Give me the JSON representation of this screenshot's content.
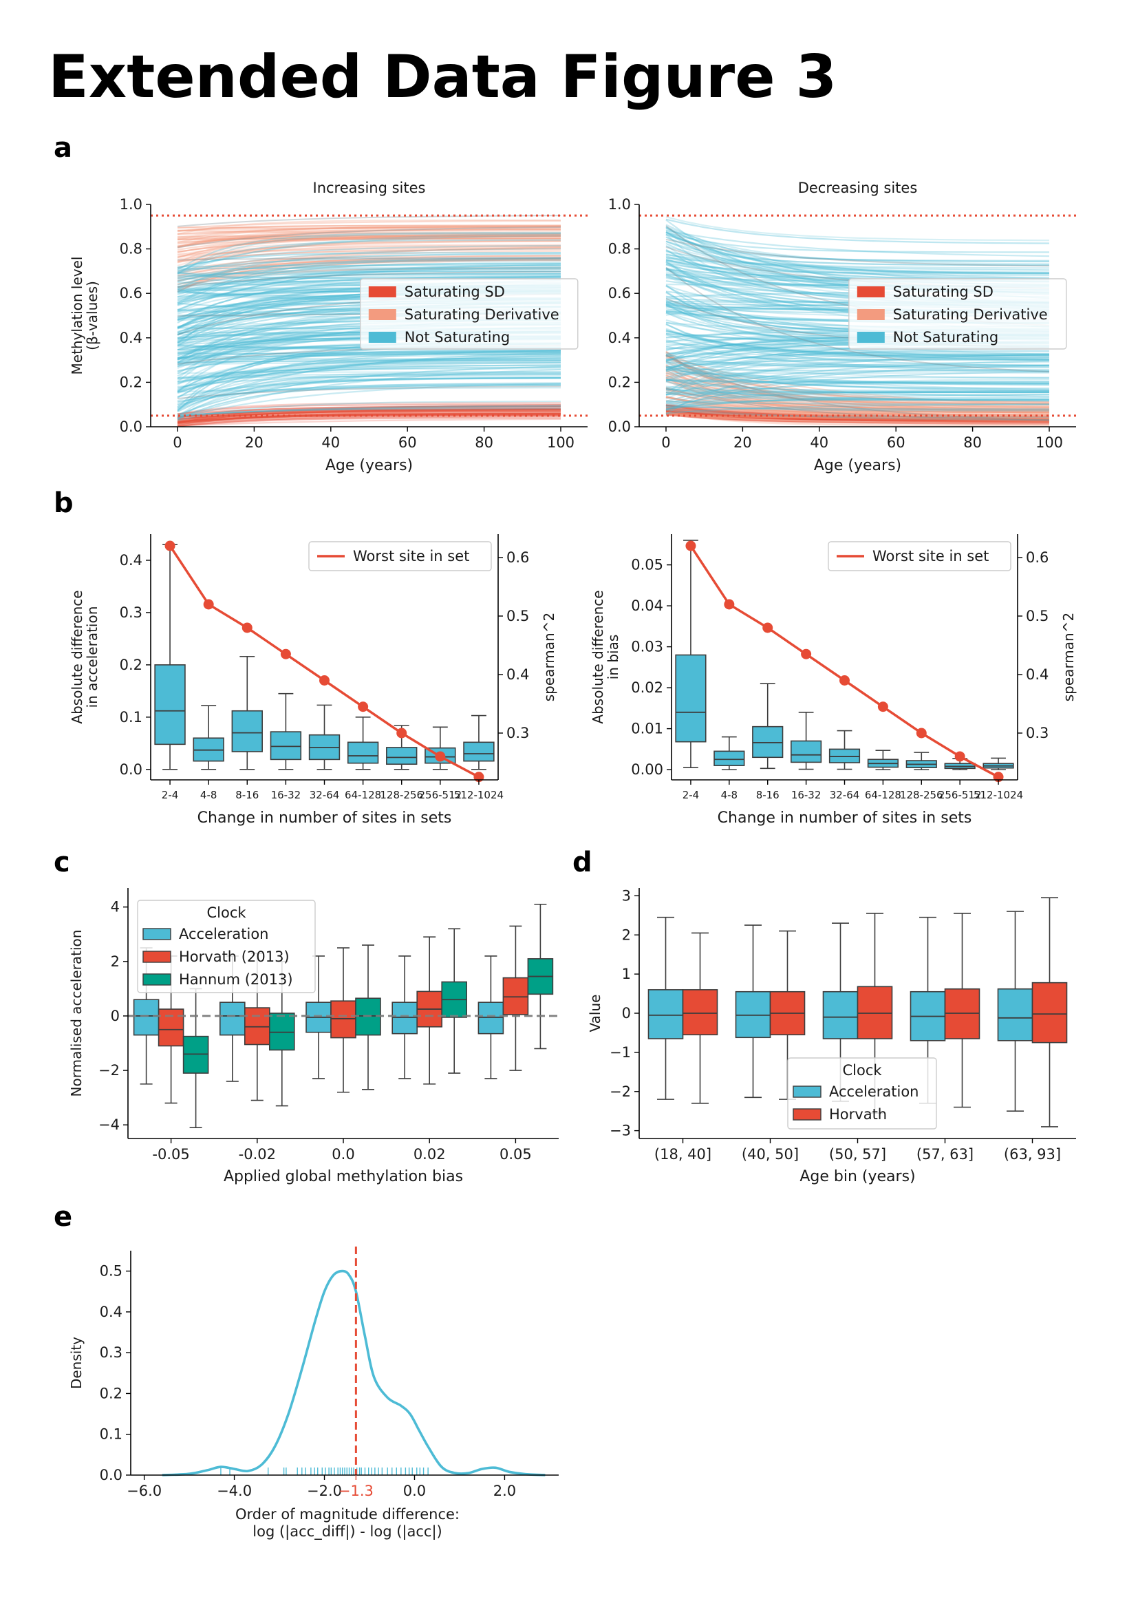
{
  "figure_title": "Extended Data Figure 3",
  "panels": {
    "a": "a",
    "b": "b",
    "c": "c",
    "d": "d",
    "e": "e"
  },
  "colors": {
    "red": "#e64b35",
    "salmon": "#f39b7f",
    "blue": "#4dbbd5",
    "green": "#00a087",
    "grey": "#808080"
  },
  "chart_data": [
    {
      "id": "a-increasing",
      "type": "line",
      "title": "Increasing sites",
      "xlabel": "Age (years)",
      "ylabel": "Methylation level",
      "ylabel2": "(β-values)",
      "xlim": [
        -7,
        107
      ],
      "ylim": [
        0,
        1
      ],
      "xticks": [
        0,
        20,
        40,
        60,
        80,
        100
      ],
      "xtick_labels": [
        "0",
        "20",
        "40",
        "60",
        "80",
        "100"
      ],
      "yticks": [
        0,
        0.2,
        0.4,
        0.6,
        0.8,
        1.0
      ],
      "ytick_labels": [
        "0.0",
        "0.2",
        "0.4",
        "0.6",
        "0.8",
        "1.0"
      ],
      "threshold_lines": [
        0.05,
        0.95
      ],
      "legend": {
        "position": "center-right",
        "entries": [
          "Saturating SD",
          "Saturating Derivative",
          "Not Saturating"
        ]
      },
      "series": [
        {
          "name": "Saturating SD",
          "color": "#e64b35",
          "band_start": [
            0.0,
            0.06
          ],
          "band_end": [
            0.03,
            0.12
          ]
        },
        {
          "name": "Saturating Derivative",
          "color": "#f39b7f",
          "band_start": [
            0.6,
            0.9
          ],
          "band_end": [
            0.7,
            0.95
          ]
        },
        {
          "name": "Not Saturating",
          "color": "#4dbbd5",
          "band_start": [
            0.02,
            0.72
          ],
          "band_end": [
            0.05,
            0.9
          ]
        }
      ]
    },
    {
      "id": "a-decreasing",
      "type": "line",
      "title": "Decreasing sites",
      "xlabel": "Age (years)",
      "xlim": [
        -7,
        107
      ],
      "ylim": [
        0,
        1
      ],
      "xticks": [
        0,
        20,
        40,
        60,
        80,
        100
      ],
      "xtick_labels": [
        "0",
        "20",
        "40",
        "60",
        "80",
        "100"
      ],
      "yticks": [
        0,
        0.2,
        0.4,
        0.6,
        0.8,
        1.0
      ],
      "ytick_labels": [
        "0.0",
        "0.2",
        "0.4",
        "0.6",
        "0.8",
        "1.0"
      ],
      "threshold_lines": [
        0.05,
        0.95
      ],
      "legend": {
        "position": "center-right",
        "entries": [
          "Saturating SD",
          "Saturating Derivative",
          "Not Saturating"
        ]
      },
      "series": [
        {
          "name": "Saturating SD",
          "color": "#e64b35",
          "band_start": [
            0.05,
            0.1
          ],
          "band_end": [
            0.01,
            0.05
          ]
        },
        {
          "name": "Saturating Derivative",
          "color": "#f39b7f",
          "band_start": [
            0.05,
            0.35
          ],
          "band_end": [
            0.0,
            0.12
          ]
        },
        {
          "name": "Not Saturating",
          "color": "#4dbbd5",
          "band_start": [
            0.05,
            0.95
          ],
          "band_end": [
            0.02,
            0.85
          ]
        }
      ]
    },
    {
      "id": "b-acceleration",
      "type": "box",
      "xlabel": "Change in number of sites in sets",
      "ylabel": "Absolute difference",
      "ylabel2": "in acceleration",
      "ylabel_right": "spearman^2",
      "categories": [
        "2-4",
        "4-8",
        "8-16",
        "16-32",
        "32-64",
        "64-128",
        "128-256",
        "256-512",
        "512-1024"
      ],
      "ylim": [
        -0.02,
        0.45
      ],
      "yticks": [
        0,
        0.1,
        0.2,
        0.3,
        0.4
      ],
      "ytick_labels": [
        "0.0",
        "0.1",
        "0.2",
        "0.3",
        "0.4"
      ],
      "ylim_right": [
        0.22,
        0.64
      ],
      "yticks_right": [
        0.3,
        0.4,
        0.5,
        0.6
      ],
      "ytick_labels_right": [
        "0.3",
        "0.4",
        "0.5",
        "0.6"
      ],
      "boxes": [
        {
          "whislo": 0.0,
          "q1": 0.048,
          "med": 0.112,
          "q3": 0.2,
          "whishi": 0.43
        },
        {
          "whislo": 0.0,
          "q1": 0.016,
          "med": 0.037,
          "q3": 0.06,
          "whishi": 0.122
        },
        {
          "whislo": 0.0,
          "q1": 0.034,
          "med": 0.07,
          "q3": 0.112,
          "whishi": 0.216
        },
        {
          "whislo": 0.0,
          "q1": 0.019,
          "med": 0.044,
          "q3": 0.072,
          "whishi": 0.145
        },
        {
          "whislo": 0.0,
          "q1": 0.019,
          "med": 0.042,
          "q3": 0.066,
          "whishi": 0.123
        },
        {
          "whislo": 0.0,
          "q1": 0.012,
          "med": 0.026,
          "q3": 0.052,
          "whishi": 0.1
        },
        {
          "whislo": 0.0,
          "q1": 0.01,
          "med": 0.023,
          "q3": 0.042,
          "whishi": 0.084
        },
        {
          "whislo": 0.0,
          "q1": 0.012,
          "med": 0.024,
          "q3": 0.041,
          "whishi": 0.081
        },
        {
          "whislo": 0.0,
          "q1": 0.016,
          "med": 0.03,
          "q3": 0.052,
          "whishi": 0.103
        }
      ],
      "line_series": {
        "name": "Worst site in set",
        "values": [
          0.62,
          0.52,
          0.48,
          0.435,
          0.39,
          0.345,
          0.3,
          0.26,
          0.225
        ]
      },
      "legend": {
        "position": "top-right",
        "entries": [
          "Worst site in set"
        ]
      }
    },
    {
      "id": "b-bias",
      "type": "box",
      "xlabel": "Change in number of sites in sets",
      "ylabel": "Absolute difference",
      "ylabel2": "in bias",
      "ylabel_right": "spearman^2",
      "categories": [
        "2-4",
        "4-8",
        "8-16",
        "16-32",
        "32-64",
        "64-128",
        "128-256",
        "256-512",
        "512-1024"
      ],
      "ylim": [
        -0.0025,
        0.0575
      ],
      "yticks": [
        0,
        0.01,
        0.02,
        0.03,
        0.04,
        0.05
      ],
      "ytick_labels": [
        "0.00",
        "0.01",
        "0.02",
        "0.03",
        "0.04",
        "0.05"
      ],
      "ylim_right": [
        0.22,
        0.64
      ],
      "yticks_right": [
        0.3,
        0.4,
        0.5,
        0.6
      ],
      "ytick_labels_right": [
        "0.3",
        "0.4",
        "0.5",
        "0.6"
      ],
      "boxes": [
        {
          "whislo": 0.0005,
          "q1": 0.0068,
          "med": 0.014,
          "q3": 0.028,
          "whishi": 0.056
        },
        {
          "whislo": 0.0,
          "q1": 0.001,
          "med": 0.0025,
          "q3": 0.0045,
          "whishi": 0.008
        },
        {
          "whislo": 0.0003,
          "q1": 0.003,
          "med": 0.0066,
          "q3": 0.0105,
          "whishi": 0.021
        },
        {
          "whislo": 0.0001,
          "q1": 0.0018,
          "med": 0.0036,
          "q3": 0.007,
          "whishi": 0.014
        },
        {
          "whislo": 0.0001,
          "q1": 0.0017,
          "med": 0.0032,
          "q3": 0.005,
          "whishi": 0.0095
        },
        {
          "whislo": 0.0,
          "q1": 0.0006,
          "med": 0.0015,
          "q3": 0.0025,
          "whishi": 0.0047
        },
        {
          "whislo": 0.0,
          "q1": 0.0005,
          "med": 0.0013,
          "q3": 0.0022,
          "whishi": 0.0042
        },
        {
          "whislo": 0.0,
          "q1": 0.0003,
          "med": 0.0008,
          "q3": 0.0015,
          "whishi": 0.0027
        },
        {
          "whislo": 0.0,
          "q1": 0.0004,
          "med": 0.0009,
          "q3": 0.0015,
          "whishi": 0.0028
        }
      ],
      "line_series": {
        "name": "Worst site in set",
        "values": [
          0.62,
          0.52,
          0.48,
          0.435,
          0.39,
          0.345,
          0.3,
          0.26,
          0.225
        ]
      },
      "legend": {
        "position": "top-right",
        "entries": [
          "Worst site in set"
        ]
      }
    },
    {
      "id": "c",
      "type": "box",
      "xlabel": "Applied global methylation bias",
      "ylabel": "Normalised acceleration",
      "categories": [
        "-0.05",
        "-0.02",
        "0.0",
        "0.02",
        "0.05"
      ],
      "ylim": [
        -4.5,
        4.7
      ],
      "yticks": [
        -4,
        -2,
        0,
        2,
        4
      ],
      "ytick_labels": [
        "−4",
        "−2",
        "0",
        "2",
        "4"
      ],
      "hline": 0,
      "legend": {
        "title": "Clock",
        "position": "top-left",
        "entries": [
          "Acceleration",
          "Horvath (2013)",
          "Hannum (2013)"
        ]
      },
      "series": [
        {
          "name": "Acceleration",
          "color": "#4dbbd5",
          "boxes": [
            {
              "whislo": -2.5,
              "q1": -0.7,
              "med": 0.0,
              "q3": 0.6,
              "whishi": 2.5
            },
            {
              "whislo": -2.4,
              "q1": -0.7,
              "med": 0.0,
              "q3": 0.5,
              "whishi": 2.2
            },
            {
              "whislo": -2.3,
              "q1": -0.6,
              "med": -0.05,
              "q3": 0.5,
              "whishi": 2.2
            },
            {
              "whislo": -2.3,
              "q1": -0.65,
              "med": -0.05,
              "q3": 0.5,
              "whishi": 2.2
            },
            {
              "whislo": -2.3,
              "q1": -0.65,
              "med": -0.05,
              "q3": 0.5,
              "whishi": 2.2
            }
          ]
        },
        {
          "name": "Horvath (2013)",
          "color": "#e64b35",
          "boxes": [
            {
              "whislo": -3.2,
              "q1": -1.1,
              "med": -0.5,
              "q3": 0.25,
              "whishi": 2.2
            },
            {
              "whislo": -3.1,
              "q1": -1.05,
              "med": -0.4,
              "q3": 0.3,
              "whishi": 2.3
            },
            {
              "whislo": -2.8,
              "q1": -0.8,
              "med": -0.1,
              "q3": 0.55,
              "whishi": 2.5
            },
            {
              "whislo": -2.5,
              "q1": -0.4,
              "med": 0.25,
              "q3": 0.9,
              "whishi": 2.9
            },
            {
              "whislo": -2.0,
              "q1": 0.05,
              "med": 0.7,
              "q3": 1.4,
              "whishi": 3.3
            }
          ]
        },
        {
          "name": "Hannum (2013)",
          "color": "#00a087",
          "boxes": [
            {
              "whislo": -4.1,
              "q1": -2.1,
              "med": -1.4,
              "q3": -0.75,
              "whishi": 1.0
            },
            {
              "whislo": -3.3,
              "q1": -1.25,
              "med": -0.6,
              "q3": 0.1,
              "whishi": 2.0
            },
            {
              "whislo": -2.7,
              "q1": -0.7,
              "med": 0.0,
              "q3": 0.65,
              "whishi": 2.6
            },
            {
              "whislo": -2.1,
              "q1": -0.05,
              "med": 0.6,
              "q3": 1.25,
              "whishi": 3.2
            },
            {
              "whislo": -1.2,
              "q1": 0.8,
              "med": 1.45,
              "q3": 2.1,
              "whishi": 4.1
            }
          ]
        }
      ]
    },
    {
      "id": "d",
      "type": "box",
      "xlabel": "Age bin (years)",
      "ylabel": "Value",
      "categories": [
        "(18, 40]",
        "(40, 50]",
        "(50, 57]",
        "(57, 63]",
        "(63, 93]"
      ],
      "ylim": [
        -3.2,
        3.2
      ],
      "yticks": [
        -3,
        -2,
        -1,
        0,
        1,
        2,
        3
      ],
      "ytick_labels": [
        "−3",
        "−2",
        "−1",
        "0",
        "1",
        "2",
        "3"
      ],
      "legend": {
        "title": "Clock",
        "position": "lower-center",
        "entries": [
          "Acceleration",
          "Horvath"
        ]
      },
      "series": [
        {
          "name": "Acceleration",
          "color": "#4dbbd5",
          "boxes": [
            {
              "whislo": -2.2,
              "q1": -0.65,
              "med": -0.05,
              "q3": 0.6,
              "whishi": 2.45
            },
            {
              "whislo": -2.15,
              "q1": -0.62,
              "med": -0.05,
              "q3": 0.55,
              "whishi": 2.25
            },
            {
              "whislo": -2.25,
              "q1": -0.65,
              "med": -0.1,
              "q3": 0.55,
              "whishi": 2.3
            },
            {
              "whislo": -2.3,
              "q1": -0.7,
              "med": -0.08,
              "q3": 0.55,
              "whishi": 2.45
            },
            {
              "whislo": -2.5,
              "q1": -0.7,
              "med": -0.12,
              "q3": 0.62,
              "whishi": 2.6
            }
          ]
        },
        {
          "name": "Horvath",
          "color": "#e64b35",
          "boxes": [
            {
              "whislo": -2.3,
              "q1": -0.55,
              "med": 0.0,
              "q3": 0.6,
              "whishi": 2.05
            },
            {
              "whislo": -2.2,
              "q1": -0.55,
              "med": 0.0,
              "q3": 0.55,
              "whishi": 2.1
            },
            {
              "whislo": -2.55,
              "q1": -0.65,
              "med": 0.0,
              "q3": 0.68,
              "whishi": 2.55
            },
            {
              "whislo": -2.4,
              "q1": -0.65,
              "med": 0.0,
              "q3": 0.62,
              "whishi": 2.55
            },
            {
              "whislo": -2.9,
              "q1": -0.75,
              "med": -0.02,
              "q3": 0.78,
              "whishi": 2.95
            }
          ]
        }
      ]
    },
    {
      "id": "e",
      "type": "line",
      "xlabel": "Order of magnitude difference:",
      "xlabel2": "log (|acc_diff|) - log (|acc|)",
      "ylabel": "Density",
      "xlim": [
        -6.3,
        3.2
      ],
      "ylim": [
        0,
        0.55
      ],
      "xticks": [
        -6,
        -4,
        -2,
        0,
        2
      ],
      "xtick_labels": [
        "−6.0",
        "−4.0",
        "−2.0",
        "0.0",
        "2.0"
      ],
      "yticks": [
        0,
        0.1,
        0.2,
        0.3,
        0.4,
        0.5
      ],
      "ytick_labels": [
        "0.0",
        "0.1",
        "0.2",
        "0.3",
        "0.4",
        "0.5"
      ],
      "vline": -1.3,
      "vline_label": "−1.3",
      "x": [
        -5.6,
        -5.0,
        -4.6,
        -4.3,
        -4.0,
        -3.7,
        -3.4,
        -3.1,
        -2.8,
        -2.5,
        -2.2,
        -2.0,
        -1.8,
        -1.6,
        -1.45,
        -1.3,
        -1.1,
        -0.9,
        -0.6,
        -0.3,
        -0.1,
        0.1,
        0.3,
        0.6,
        0.9,
        1.2,
        1.5,
        1.8,
        2.1,
        2.5,
        2.9
      ],
      "y": [
        0.0,
        0.003,
        0.012,
        0.02,
        0.015,
        0.01,
        0.025,
        0.07,
        0.15,
        0.26,
        0.38,
        0.45,
        0.49,
        0.5,
        0.49,
        0.45,
        0.34,
        0.24,
        0.19,
        0.17,
        0.15,
        0.11,
        0.07,
        0.02,
        0.005,
        0.005,
        0.015,
        0.018,
        0.008,
        0.002,
        0.0
      ],
      "rug": [
        -4.3,
        -4.1,
        -3.25,
        -2.9,
        -2.85,
        -2.6,
        -2.5,
        -2.42,
        -2.3,
        -2.22,
        -2.15,
        -2.05,
        -1.98,
        -1.9,
        -1.85,
        -1.78,
        -1.7,
        -1.65,
        -1.6,
        -1.55,
        -1.5,
        -1.45,
        -1.4,
        -1.35,
        -1.28,
        -1.22,
        -1.18,
        -1.1,
        -1.02,
        -0.95,
        -0.88,
        -0.8,
        -0.72,
        -0.6,
        -0.5,
        -0.4,
        -0.3,
        -0.2,
        -0.12,
        -0.05,
        0.05,
        0.12,
        0.2,
        0.3
      ]
    }
  ]
}
